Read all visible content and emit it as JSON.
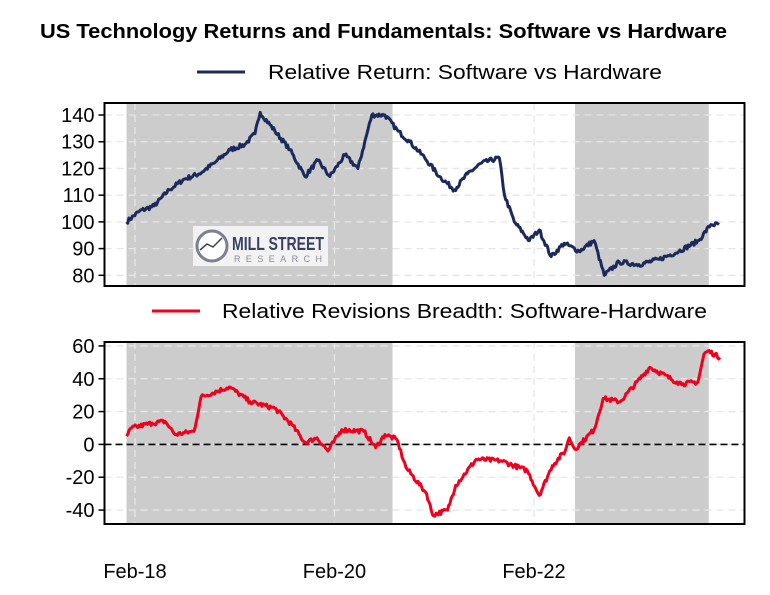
{
  "chart_data": [
    {
      "type": "line",
      "title": "US Technology Returns and Fundamentals: Software vs Hardware",
      "legend_position": "top",
      "grid": true,
      "ylim": [
        76,
        144.5
      ],
      "yticks": [
        80,
        90,
        100,
        110,
        120,
        130,
        140
      ],
      "xticks": [
        {
          "date": "2018-02-01",
          "label": "Feb-18"
        },
        {
          "date": "2020-02-01",
          "label": "Feb-20"
        },
        {
          "date": "2022-02-01",
          "label": "Feb-22"
        }
      ],
      "shaded_periods": [
        [
          "2018-01-01",
          "2020-09-01"
        ],
        [
          "2022-07-01",
          "2023-12-31"
        ]
      ],
      "shade_color": "#cccccc",
      "series": [
        {
          "name": "Relative Return: Software vs Hardware",
          "color": "#1b2a5a",
          "x": [
            "2018-01-01",
            "2018-02-17",
            "2018-04-12",
            "2018-06-06",
            "2018-07-31",
            "2018-09-24",
            "2018-11-18",
            "2019-01-15",
            "2019-03-10",
            "2019-04-16",
            "2019-05-05",
            "2019-06-28",
            "2019-08-22",
            "2019-10-16",
            "2019-12-02",
            "2020-01-15",
            "2020-03-10",
            "2020-04-27",
            "2020-06-17",
            "2020-08-04",
            "2020-09-21",
            "2020-11-03",
            "2020-12-28",
            "2021-02-20",
            "2021-04-16",
            "2021-06-03",
            "2021-07-24",
            "2021-09-27",
            "2021-10-16",
            "2021-11-21",
            "2022-01-15",
            "2022-02-20",
            "2022-04-05",
            "2022-05-22",
            "2022-07-16",
            "2022-09-09",
            "2022-10-16",
            "2022-12-10",
            "2023-02-20",
            "2023-05-05",
            "2023-07-16",
            "2023-09-27",
            "2023-11-10",
            "2023-12-10"
          ],
          "y": [
            100,
            104,
            106,
            112,
            116,
            118,
            122,
            127,
            129,
            133,
            141,
            134,
            127,
            117,
            123,
            117,
            125,
            120,
            140,
            140,
            134,
            130,
            124,
            117,
            112,
            118,
            122,
            124,
            110,
            100,
            93,
            97,
            87,
            92,
            89,
            93,
            80,
            85,
            84,
            86,
            89,
            93,
            99,
            99
          ]
        }
      ]
    },
    {
      "type": "line",
      "legend_position": "top",
      "grid": true,
      "ylim": [
        -48.5,
        62.4
      ],
      "yticks": [
        -40,
        -20,
        0,
        20,
        40,
        60
      ],
      "reference_line": 0,
      "xticks": [
        {
          "date": "2018-02-01",
          "label": "Feb-18"
        },
        {
          "date": "2020-02-01",
          "label": "Feb-20"
        },
        {
          "date": "2022-02-01",
          "label": "Feb-22"
        }
      ],
      "shaded_periods": [
        [
          "2018-01-01",
          "2020-09-01"
        ],
        [
          "2022-07-01",
          "2023-12-31"
        ]
      ],
      "shade_color": "#cccccc",
      "series": [
        {
          "name": "Relative Revisions Breadth: Software-Hardware",
          "color": "#f0001c",
          "x": [
            "2018-01-01",
            "2018-01-19",
            "2018-04-05",
            "2018-05-22",
            "2018-06-28",
            "2018-09-05",
            "2018-10-01",
            "2019-01-12",
            "2019-03-29",
            "2019-06-28",
            "2019-08-29",
            "2019-10-16",
            "2019-11-29",
            "2020-01-08",
            "2020-02-28",
            "2020-05-19",
            "2020-07-01",
            "2020-08-04",
            "2020-09-17",
            "2020-10-20",
            "2021-01-04",
            "2021-01-26",
            "2021-03-22",
            "2021-04-20",
            "2021-07-05",
            "2021-10-04",
            "2022-01-08",
            "2022-02-20",
            "2022-04-09",
            "2022-05-26",
            "2022-06-10",
            "2022-07-01",
            "2022-09-09",
            "2022-10-12",
            "2022-12-13",
            "2023-04-01",
            "2023-07-09",
            "2023-07-31",
            "2023-09-24",
            "2023-10-16",
            "2023-10-31",
            "2023-12-13"
          ],
          "y": [
            5,
            10,
            13,
            14,
            6,
            8,
            29,
            35,
            26,
            22,
            12,
            1,
            4,
            -4,
            9,
            8,
            -2,
            6,
            3,
            -14,
            -30,
            -43,
            -40,
            -25,
            -9,
            -10,
            -16,
            -31,
            -13,
            -4,
            4,
            -3,
            9,
            28,
            26,
            47,
            38,
            37,
            38,
            55,
            57,
            53
          ]
        }
      ]
    }
  ],
  "logo": {
    "line1": "MILL STREET",
    "line2": "RESEARCH"
  }
}
